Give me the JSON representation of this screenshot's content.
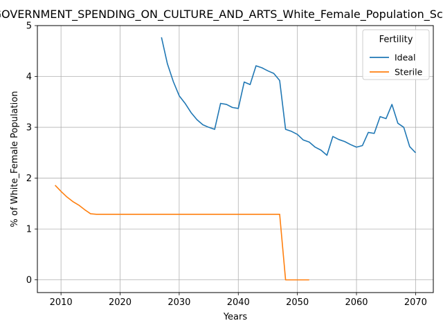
{
  "chart_data": {
    "type": "line",
    "title": "GOVERNMENT_SPENDING_ON_CULTURE_AND_ARTS_White_Female_Population_Scenario",
    "xlabel": "Years",
    "ylabel": "% of White_Female Population",
    "xlim": [
      2006,
      2073
    ],
    "ylim": [
      -0.25,
      5.0
    ],
    "xticks": [
      2010,
      2020,
      2030,
      2040,
      2050,
      2060,
      2070
    ],
    "yticks": [
      0,
      1,
      2,
      3,
      4,
      5
    ],
    "grid": true,
    "legend": {
      "title": "Fertility",
      "placement": "upper right"
    },
    "series": [
      {
        "name": "Ideal",
        "color": "#1f77b4",
        "x": [
          2027,
          2028,
          2029,
          2030,
          2031,
          2032,
          2033,
          2034,
          2035,
          2036,
          2037,
          2038,
          2039,
          2040,
          2041,
          2042,
          2043,
          2044,
          2045,
          2046,
          2047,
          2048,
          2049,
          2050,
          2051,
          2052,
          2053,
          2054,
          2055,
          2056,
          2057,
          2058,
          2059,
          2060,
          2061,
          2062,
          2063,
          2064,
          2065,
          2066,
          2067,
          2068,
          2069,
          2070
        ],
        "y": [
          4.77,
          4.25,
          3.9,
          3.62,
          3.47,
          3.29,
          3.15,
          3.05,
          3.0,
          2.96,
          3.47,
          3.45,
          3.39,
          3.37,
          3.89,
          3.84,
          4.21,
          4.17,
          4.11,
          4.06,
          3.92,
          2.96,
          2.92,
          2.86,
          2.75,
          2.71,
          2.61,
          2.55,
          2.45,
          2.82,
          2.76,
          2.72,
          2.66,
          2.61,
          2.64,
          2.9,
          2.88,
          3.21,
          3.17,
          3.45,
          3.08,
          3.0,
          2.62,
          2.5
        ]
      },
      {
        "name": "Sterile",
        "color": "#ff7f0e",
        "x": [
          2009,
          2010,
          2011,
          2012,
          2013,
          2014,
          2015,
          2016,
          2017,
          2018,
          2019,
          2020,
          2021,
          2022,
          2023,
          2024,
          2025,
          2026,
          2027,
          2028,
          2029,
          2030,
          2031,
          2032,
          2033,
          2034,
          2035,
          2036,
          2037,
          2038,
          2039,
          2040,
          2041,
          2042,
          2043,
          2044,
          2045,
          2046,
          2047,
          2048,
          2049,
          2050,
          2051,
          2052
        ],
        "y": [
          1.86,
          1.74,
          1.63,
          1.54,
          1.47,
          1.38,
          1.3,
          1.29,
          1.29,
          1.29,
          1.29,
          1.29,
          1.29,
          1.29,
          1.29,
          1.29,
          1.29,
          1.29,
          1.29,
          1.29,
          1.29,
          1.29,
          1.29,
          1.29,
          1.29,
          1.29,
          1.29,
          1.29,
          1.29,
          1.29,
          1.29,
          1.29,
          1.29,
          1.29,
          1.29,
          1.29,
          1.29,
          1.29,
          1.29,
          0.0,
          0.0,
          0.0,
          0.0,
          0.0
        ]
      }
    ]
  }
}
